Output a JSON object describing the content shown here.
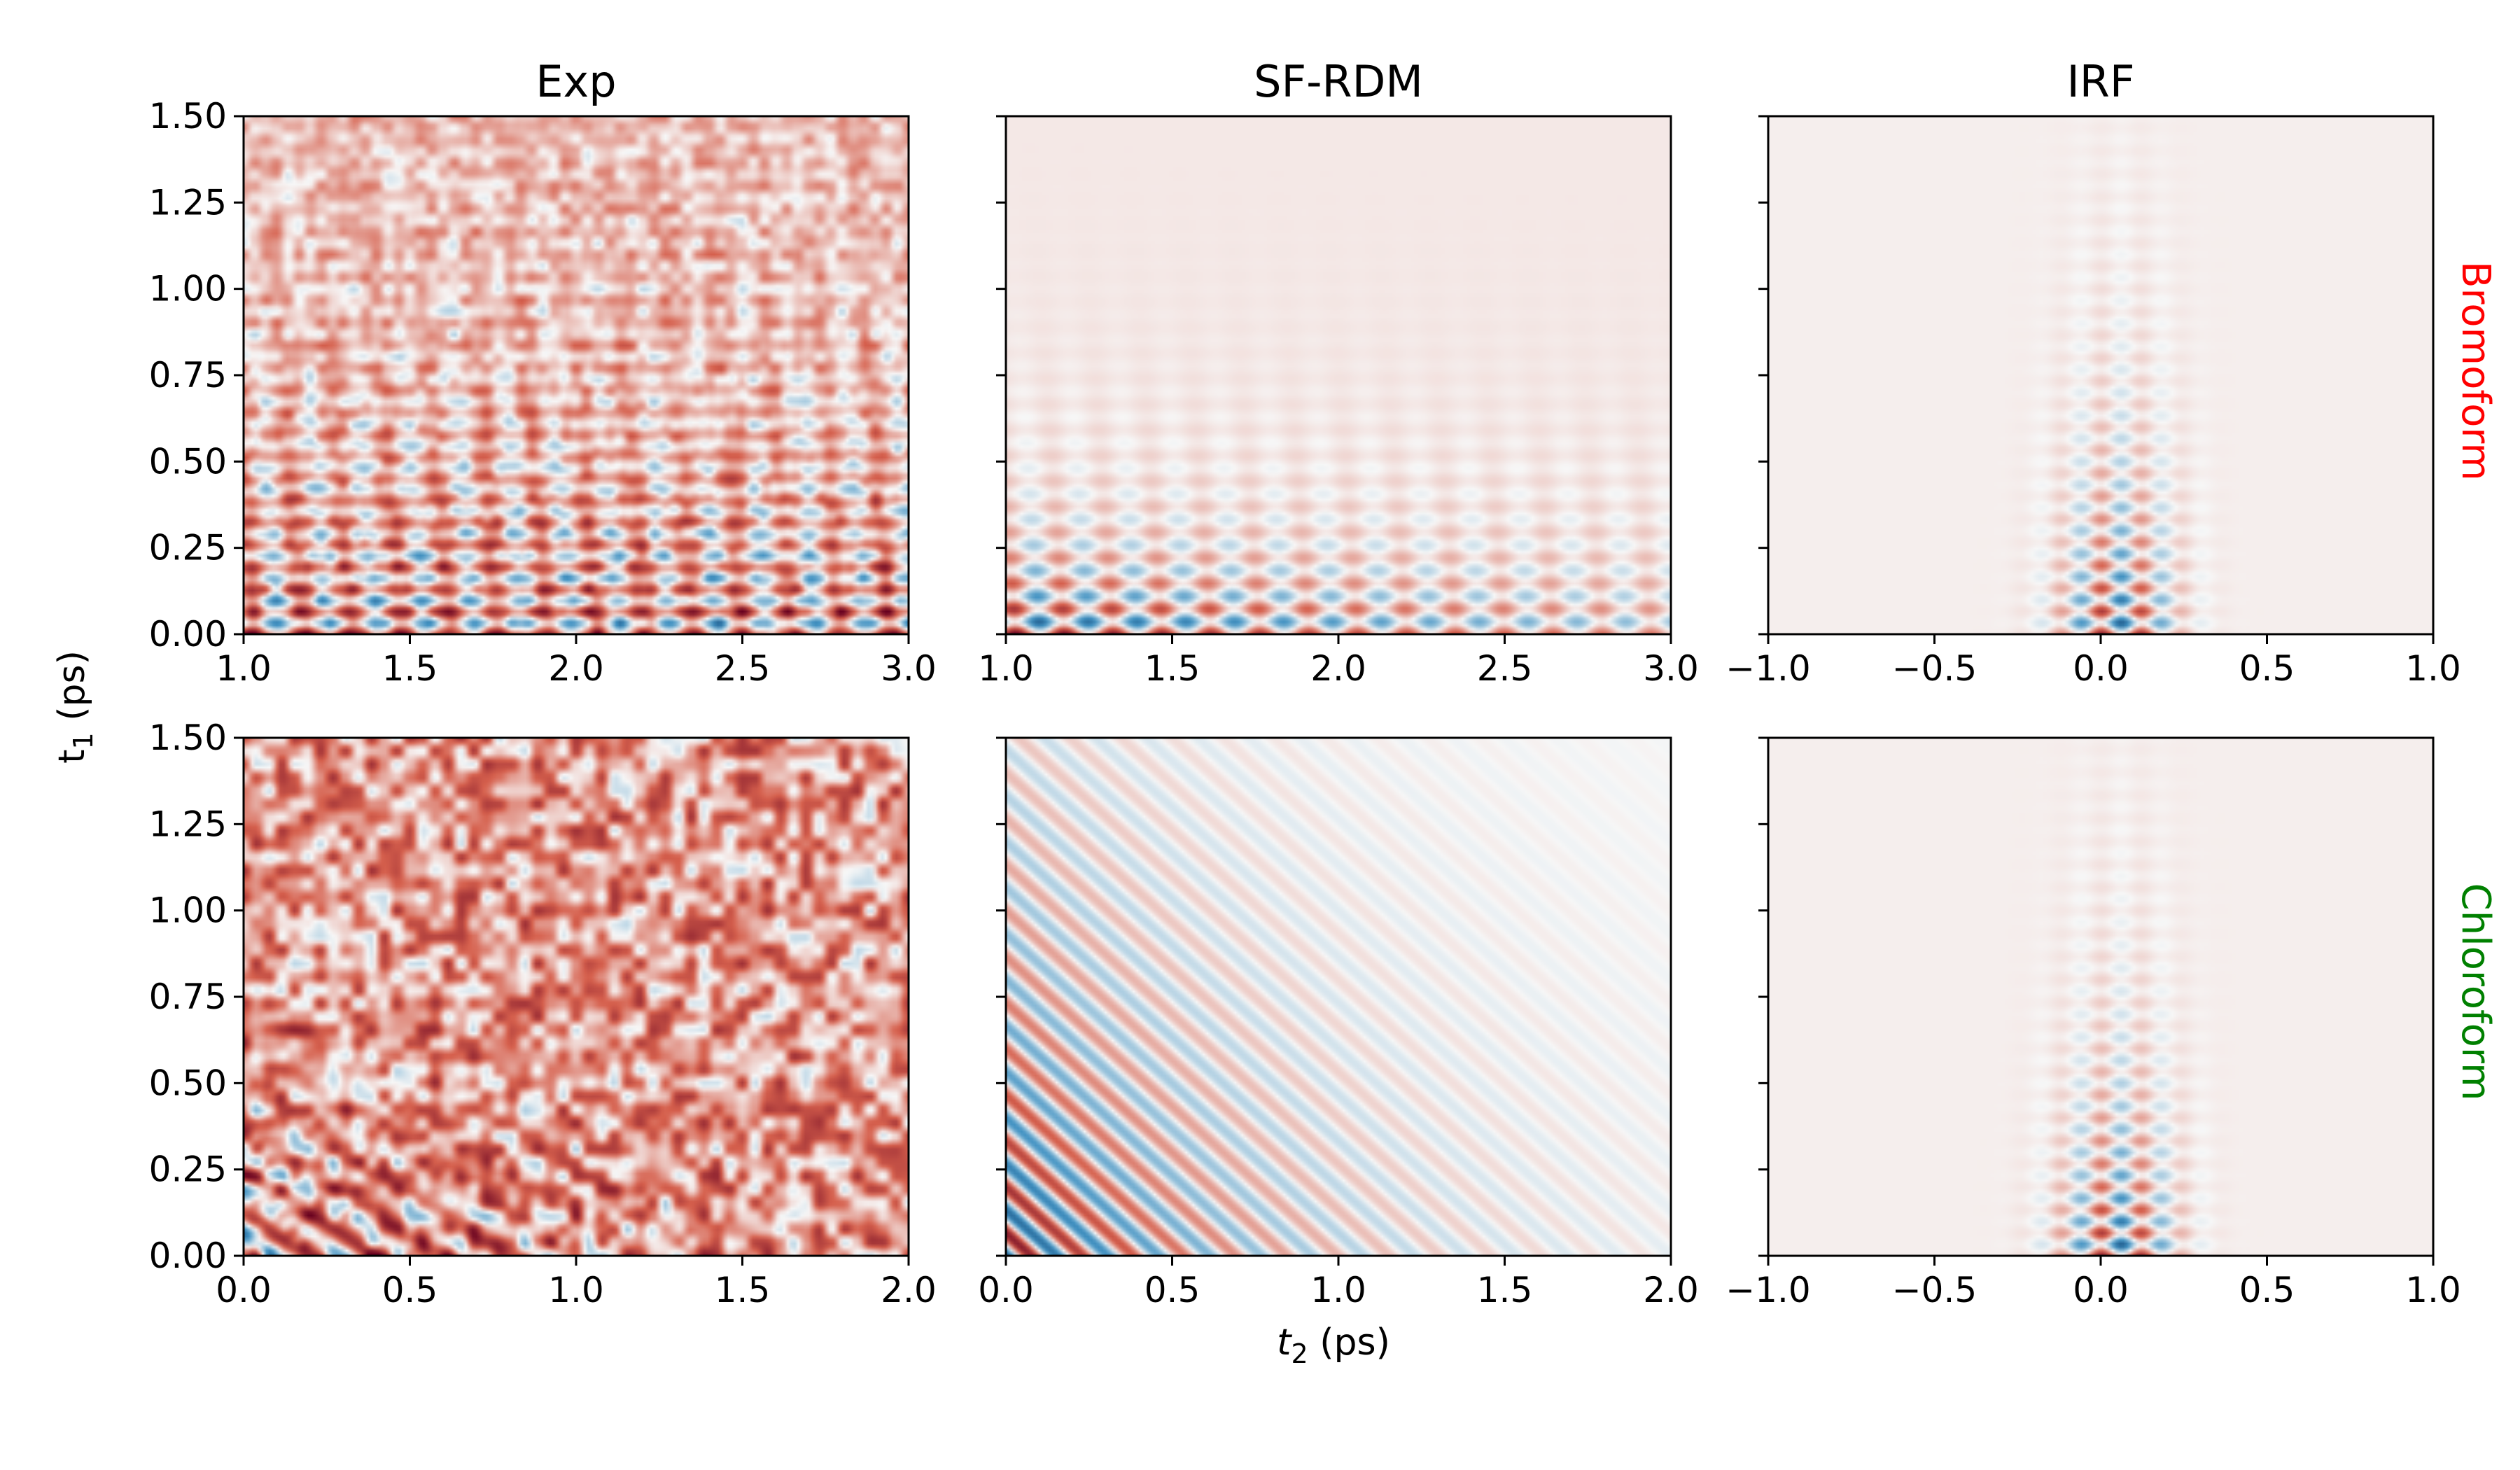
{
  "figure": {
    "xlabel_main": "t",
    "xlabel_sub": "2",
    "xlabel_unit": " (ps)",
    "ylabel_main": "t",
    "ylabel_sub": "1",
    "ylabel_unit": " (ps)"
  },
  "colors": {
    "negative": "#053061",
    "mid_negative": "#4393c3",
    "neutral": "#f7f7f7",
    "mid_positive": "#d6604d",
    "positive": "#67001f",
    "bromoform_label": "#ff0000",
    "chloroform_label": "#008000"
  },
  "row_labels": [
    {
      "text": "Bromoform",
      "color": "#ff0000"
    },
    {
      "text": "Chloroform",
      "color": "#008000"
    }
  ],
  "chart_data": [
    {
      "type": "heatmap",
      "title": "Exp",
      "row": 0,
      "col": 0,
      "pattern": "noisy-diagonal-beats",
      "xlim": [
        1.0,
        3.0
      ],
      "ylim": [
        0.0,
        1.5
      ],
      "xticks": [
        "1.0",
        "1.5",
        "2.0",
        "2.5",
        "3.0"
      ],
      "yticks": [
        "0.00",
        "0.25",
        "0.50",
        "0.75",
        "1.00",
        "1.25",
        "1.50"
      ],
      "show_yticklabels": true
    },
    {
      "type": "heatmap",
      "title": "SF-RDM",
      "row": 0,
      "col": 1,
      "pattern": "decaying-diagonal-beats",
      "xlim": [
        1.0,
        3.0
      ],
      "ylim": [
        0.0,
        1.5
      ],
      "xticks": [
        "1.0",
        "1.5",
        "2.0",
        "2.5",
        "3.0"
      ],
      "yticks": [
        "0.00",
        "0.25",
        "0.50",
        "0.75",
        "1.00",
        "1.25",
        "1.50"
      ],
      "show_yticklabels": false
    },
    {
      "type": "heatmap",
      "title": "IRF",
      "row": 0,
      "col": 2,
      "pattern": "localized-checkerboard-near-t2-0",
      "xlim": [
        -1.0,
        1.0
      ],
      "ylim": [
        0.0,
        1.5
      ],
      "xticks": [
        "−1.0",
        "−0.5",
        "0.0",
        "0.5",
        "1.0"
      ],
      "yticks": [
        "0.00",
        "0.25",
        "0.50",
        "0.75",
        "1.00",
        "1.25",
        "1.50"
      ],
      "show_yticklabels": false
    },
    {
      "type": "heatmap",
      "title": "",
      "row": 1,
      "col": 0,
      "pattern": "noise-dominated",
      "xlim": [
        0.0,
        2.0
      ],
      "ylim": [
        0.0,
        1.5
      ],
      "xticks": [
        "0.0",
        "0.5",
        "1.0",
        "1.5",
        "2.0"
      ],
      "yticks": [
        "0.00",
        "0.25",
        "0.50",
        "0.75",
        "1.00",
        "1.25",
        "1.50"
      ],
      "show_yticklabels": true
    },
    {
      "type": "heatmap",
      "title": "",
      "row": 1,
      "col": 1,
      "pattern": "diagonal-stripes",
      "xlim": [
        0.0,
        2.0
      ],
      "ylim": [
        0.0,
        1.5
      ],
      "xticks": [
        "0.0",
        "0.5",
        "1.0",
        "1.5",
        "2.0"
      ],
      "yticks": [
        "0.00",
        "0.25",
        "0.50",
        "0.75",
        "1.00",
        "1.25",
        "1.50"
      ],
      "show_yticklabels": false
    },
    {
      "type": "heatmap",
      "title": "",
      "row": 1,
      "col": 2,
      "pattern": "localized-checkerboard-near-t2-0",
      "xlim": [
        -1.0,
        1.0
      ],
      "ylim": [
        0.0,
        1.5
      ],
      "xticks": [
        "−1.0",
        "−0.5",
        "0.0",
        "0.5",
        "1.0"
      ],
      "yticks": [
        "0.00",
        "0.25",
        "0.50",
        "0.75",
        "1.00",
        "1.25",
        "1.50"
      ],
      "show_yticklabels": false
    }
  ]
}
